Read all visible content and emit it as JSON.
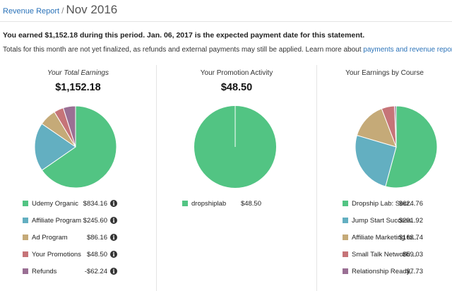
{
  "header": {
    "breadcrumb_link": "Revenue Report",
    "breadcrumb_sep": "/",
    "title": "Nov 2016"
  },
  "summary_text": "You earned $1,152.18 during this period. Jan. 06, 2017 is the expected payment date for this statement.",
  "note": {
    "text": "Totals for this month are not yet finalized, as refunds and external payments may still be applied. Learn more about ",
    "link": "payments and revenue reports",
    "end": "."
  },
  "colors": {
    "green": "#52c483",
    "blue": "#63afc1",
    "tan": "#c5aa78",
    "rose": "#c67478",
    "purple": "#9a6f94",
    "link": "#2b73b9"
  },
  "panels": [
    {
      "title": "Your Total Earnings",
      "total": "$1,152.18",
      "chart_data": {
        "type": "pie",
        "categories": [
          "Udemy Organic",
          "Affiliate Program",
          "Ad Program",
          "Your Promotions",
          "Refunds"
        ],
        "values": [
          834.16,
          245.6,
          86.16,
          48.5,
          62.24
        ]
      },
      "legend": [
        {
          "label": "Udemy Organic",
          "value": "$834.16",
          "color": "green",
          "info": true
        },
        {
          "label": "Affiliate Program",
          "value": "$245.60",
          "color": "blue",
          "info": true
        },
        {
          "label": "Ad Program",
          "value": "$86.16",
          "color": "tan",
          "info": true
        },
        {
          "label": "Your Promotions",
          "value": "$48.50",
          "color": "rose",
          "info": true
        },
        {
          "label": "Refunds",
          "value": "-$62.24",
          "color": "purple",
          "info": true
        }
      ]
    },
    {
      "title": "Your Promotion Activity",
      "total": "$48.50",
      "chart_data": {
        "type": "pie",
        "categories": [
          "dropshiplab"
        ],
        "values": [
          48.5
        ]
      },
      "legend": [
        {
          "label": "dropshiplab",
          "value": "$48.50",
          "color": "green",
          "info": false
        }
      ]
    },
    {
      "title": "Your Earnings by Course",
      "total": "",
      "chart_data": {
        "type": "pie",
        "categories": [
          "Dropship Lab: Secret ...",
          "Jump Start Success – ...",
          "Affiliate Marketing for...",
          "Small Talk Networking:...",
          "Relationship Ready, Mee..."
        ],
        "values": [
          624.76,
          291.92,
          168.74,
          59.03,
          7.73
        ]
      },
      "legend": [
        {
          "label": "Dropship Lab: Secret ...",
          "value": "$624.76",
          "color": "green",
          "info": false
        },
        {
          "label": "Jump Start Success – ...",
          "value": "$291.92",
          "color": "blue",
          "info": false
        },
        {
          "label": "Affiliate Marketing for...",
          "value": "$168.74",
          "color": "tan",
          "info": false
        },
        {
          "label": "Small Talk Networking:...",
          "value": "$59.03",
          "color": "rose",
          "info": false
        },
        {
          "label": "Relationship Ready, Mee...",
          "value": "$7.73",
          "color": "purple",
          "info": false
        }
      ]
    }
  ],
  "info_glyph": "i"
}
